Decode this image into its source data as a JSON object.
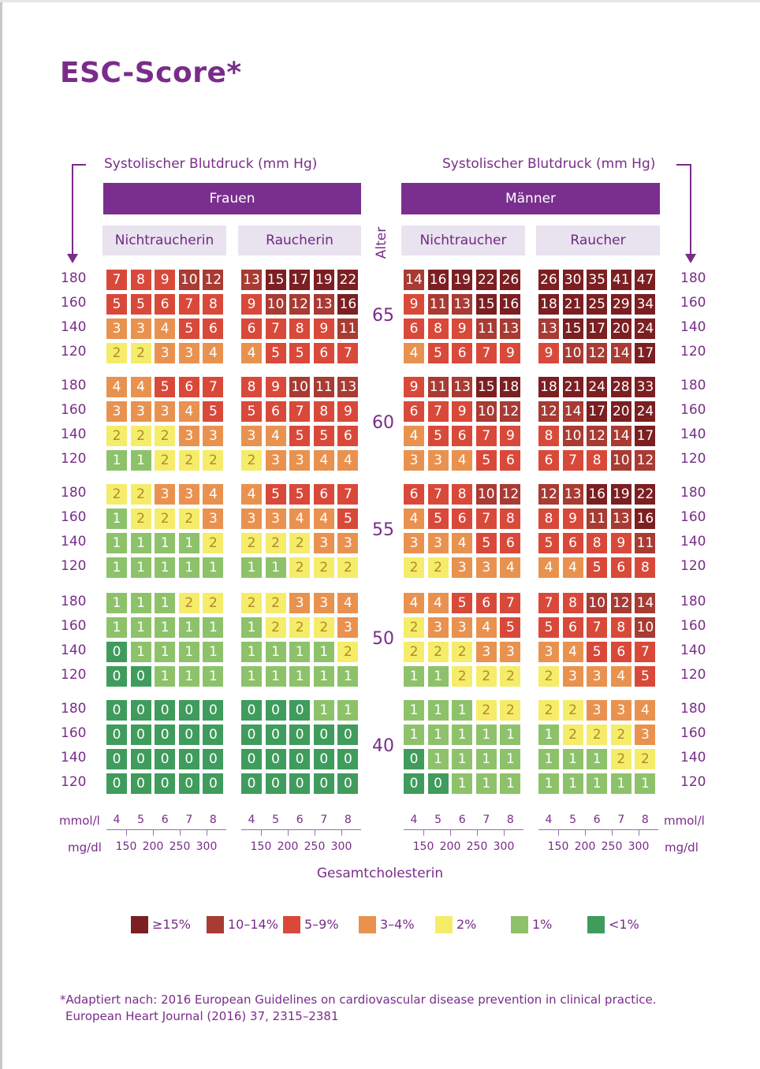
{
  "title": "ESC-Score*",
  "bp_axis_label_left": "Systolischer Blutdruck (mm Hg)",
  "bp_axis_label_right": "Systolischer Blutdruck (mm Hg)",
  "sex": {
    "female": "Frauen",
    "male": "Männer"
  },
  "smoking": {
    "female_nonsmoker": "Nichtraucherin",
    "female_smoker": "Raucherin",
    "male_nonsmoker": "Nichtraucher",
    "male_smoker": "Raucher"
  },
  "age_axis_label": "Alter",
  "x_axis": {
    "mmol_label": "mmol/l",
    "mgdl_label": "mg/dl",
    "mmol_ticks": [
      "4",
      "5",
      "6",
      "7",
      "8"
    ],
    "mgdl_ticks": [
      "150",
      "200",
      "250",
      "300"
    ],
    "title": "Gesamtcholesterin"
  },
  "legend": [
    {
      "label": "≥15%",
      "color": "#7b1f22"
    },
    {
      "label": "10–14%",
      "color": "#a83b33"
    },
    {
      "label": "5–9%",
      "color": "#d9493a"
    },
    {
      "label": "3–4%",
      "color": "#e99250"
    },
    {
      "label": "2%",
      "color": "#f5ec6a"
    },
    {
      "label": "1%",
      "color": "#8dc26a"
    },
    {
      "label": "<1%",
      "color": "#3f9c5c"
    }
  ],
  "footnote": [
    "*Adaptiert nach: 2016 European Guidelines on cardiovascular disease prevention in clinical practice.",
    "European Heart Journal (2016) 37, 2315–2381"
  ],
  "chart_data": {
    "type": "heatmap",
    "title": "ESC-Score*",
    "ages": [
      "65",
      "60",
      "55",
      "50",
      "40"
    ],
    "bp_rows": [
      "180",
      "160",
      "140",
      "120"
    ],
    "cholesterol_mmol": [
      "4",
      "5",
      "6",
      "7",
      "8"
    ],
    "panels": {
      "female_nonsmoker": {
        "65": [
          [
            7,
            8,
            9,
            10,
            12
          ],
          [
            5,
            5,
            6,
            7,
            8
          ],
          [
            3,
            3,
            4,
            5,
            6
          ],
          [
            2,
            2,
            3,
            3,
            4
          ]
        ],
        "60": [
          [
            4,
            4,
            5,
            6,
            7
          ],
          [
            3,
            3,
            3,
            4,
            5
          ],
          [
            2,
            2,
            2,
            3,
            3
          ],
          [
            1,
            1,
            2,
            2,
            2
          ]
        ],
        "55": [
          [
            2,
            2,
            3,
            3,
            4
          ],
          [
            1,
            2,
            2,
            2,
            3
          ],
          [
            1,
            1,
            1,
            1,
            2
          ],
          [
            1,
            1,
            1,
            1,
            1
          ]
        ],
        "50": [
          [
            1,
            1,
            1,
            2,
            2
          ],
          [
            1,
            1,
            1,
            1,
            1
          ],
          [
            0,
            1,
            1,
            1,
            1
          ],
          [
            0,
            0,
            1,
            1,
            1
          ]
        ],
        "40": [
          [
            0,
            0,
            0,
            0,
            0
          ],
          [
            0,
            0,
            0,
            0,
            0
          ],
          [
            0,
            0,
            0,
            0,
            0
          ],
          [
            0,
            0,
            0,
            0,
            0
          ]
        ]
      },
      "female_smoker": {
        "65": [
          [
            13,
            15,
            17,
            19,
            22
          ],
          [
            9,
            10,
            12,
            13,
            16
          ],
          [
            6,
            7,
            8,
            9,
            11
          ],
          [
            4,
            5,
            5,
            6,
            7
          ]
        ],
        "60": [
          [
            8,
            9,
            10,
            11,
            13
          ],
          [
            5,
            6,
            7,
            8,
            9
          ],
          [
            3,
            4,
            5,
            5,
            6
          ],
          [
            2,
            3,
            3,
            4,
            4
          ]
        ],
        "55": [
          [
            4,
            5,
            5,
            6,
            7
          ],
          [
            3,
            3,
            4,
            4,
            5
          ],
          [
            2,
            2,
            2,
            3,
            3
          ],
          [
            1,
            1,
            2,
            2,
            2
          ]
        ],
        "50": [
          [
            2,
            2,
            3,
            3,
            4
          ],
          [
            1,
            2,
            2,
            2,
            3
          ],
          [
            1,
            1,
            1,
            1,
            2
          ],
          [
            1,
            1,
            1,
            1,
            1
          ]
        ],
        "40": [
          [
            0,
            0,
            0,
            1,
            1
          ],
          [
            0,
            0,
            0,
            0,
            0
          ],
          [
            0,
            0,
            0,
            0,
            0
          ],
          [
            0,
            0,
            0,
            0,
            0
          ]
        ]
      },
      "male_nonsmoker": {
        "65": [
          [
            14,
            16,
            19,
            22,
            26
          ],
          [
            9,
            11,
            13,
            15,
            16
          ],
          [
            6,
            8,
            9,
            11,
            13
          ],
          [
            4,
            5,
            6,
            7,
            9
          ]
        ],
        "60": [
          [
            9,
            11,
            13,
            15,
            18
          ],
          [
            6,
            7,
            9,
            10,
            12
          ],
          [
            4,
            5,
            6,
            7,
            9
          ],
          [
            3,
            3,
            4,
            5,
            6
          ]
        ],
        "55": [
          [
            6,
            7,
            8,
            10,
            12
          ],
          [
            4,
            5,
            6,
            7,
            8
          ],
          [
            3,
            3,
            4,
            5,
            6
          ],
          [
            2,
            2,
            3,
            3,
            4
          ]
        ],
        "50": [
          [
            4,
            4,
            5,
            6,
            7
          ],
          [
            2,
            3,
            3,
            4,
            5
          ],
          [
            2,
            2,
            2,
            3,
            3
          ],
          [
            1,
            1,
            2,
            2,
            2
          ]
        ],
        "40": [
          [
            1,
            1,
            1,
            2,
            2
          ],
          [
            1,
            1,
            1,
            1,
            1
          ],
          [
            0,
            1,
            1,
            1,
            1
          ],
          [
            0,
            0,
            1,
            1,
            1
          ]
        ]
      },
      "male_smoker": {
        "65": [
          [
            26,
            30,
            35,
            41,
            47
          ],
          [
            18,
            21,
            25,
            29,
            34
          ],
          [
            13,
            15,
            17,
            20,
            24
          ],
          [
            9,
            10,
            12,
            14,
            17
          ]
        ],
        "60": [
          [
            18,
            21,
            24,
            28,
            33
          ],
          [
            12,
            14,
            17,
            20,
            24
          ],
          [
            8,
            10,
            12,
            14,
            17
          ],
          [
            6,
            7,
            8,
            10,
            12
          ]
        ],
        "55": [
          [
            12,
            13,
            16,
            19,
            22
          ],
          [
            8,
            9,
            11,
            13,
            16
          ],
          [
            5,
            6,
            8,
            9,
            11
          ],
          [
            4,
            4,
            5,
            6,
            8
          ]
        ],
        "50": [
          [
            7,
            8,
            10,
            12,
            14
          ],
          [
            5,
            6,
            7,
            8,
            10
          ],
          [
            3,
            4,
            5,
            6,
            7
          ],
          [
            2,
            3,
            3,
            4,
            5
          ]
        ],
        "40": [
          [
            2,
            2,
            3,
            3,
            4
          ],
          [
            1,
            2,
            2,
            2,
            3
          ],
          [
            1,
            1,
            1,
            2,
            2
          ],
          [
            1,
            1,
            1,
            1,
            1
          ]
        ]
      }
    }
  }
}
